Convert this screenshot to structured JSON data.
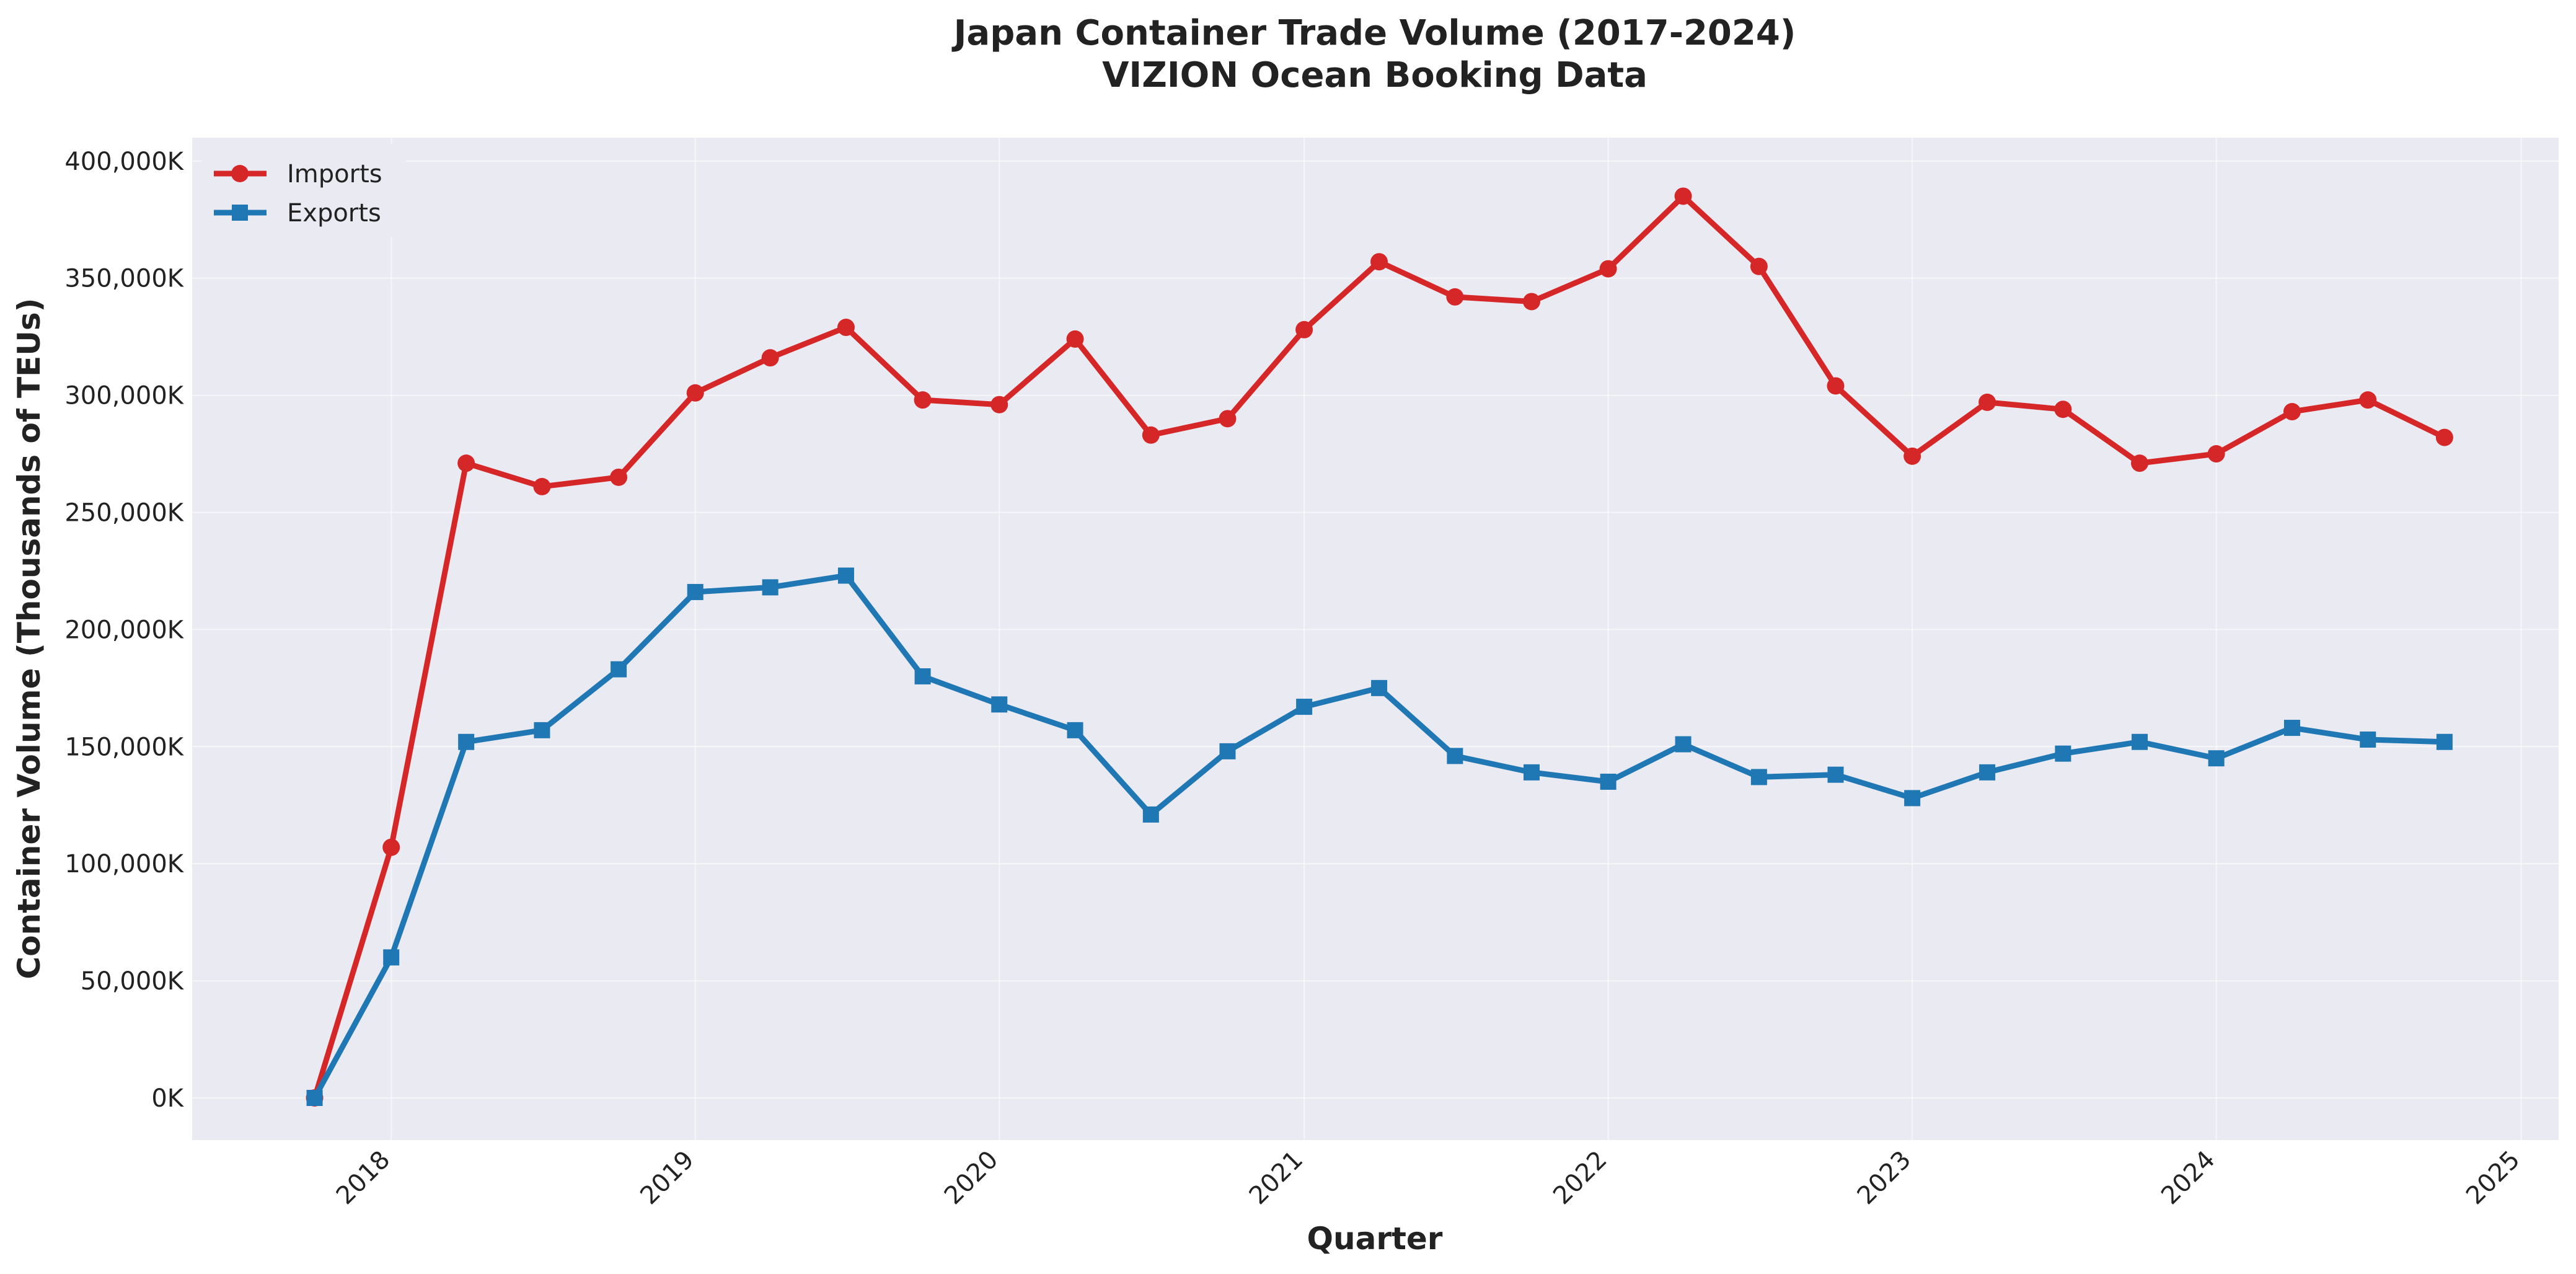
{
  "chart_data": {
    "type": "line",
    "title": "Japan Container Trade Volume (2017-2024)",
    "subtitle": "VIZION Ocean Booking Data",
    "xlabel": "Quarter",
    "ylabel": "Container Volume (Thousands of TEUs)",
    "xlim": [
      "2017-05-07",
      "2025-02-15"
    ],
    "ylim": [
      -18000,
      410000
    ],
    "x_ticks": [
      {
        "date": "2018-01-01",
        "label": "2018"
      },
      {
        "date": "2019-01-01",
        "label": "2019"
      },
      {
        "date": "2020-01-01",
        "label": "2020"
      },
      {
        "date": "2021-01-01",
        "label": "2021"
      },
      {
        "date": "2022-01-01",
        "label": "2022"
      },
      {
        "date": "2023-01-01",
        "label": "2023"
      },
      {
        "date": "2024-01-01",
        "label": "2024"
      },
      {
        "date": "2025-01-01",
        "label": "2025"
      }
    ],
    "y_ticks": [
      {
        "value": 0,
        "label": "0K"
      },
      {
        "value": 50000,
        "label": "50,000K"
      },
      {
        "value": 100000,
        "label": "100,000K"
      },
      {
        "value": 150000,
        "label": "150,000K"
      },
      {
        "value": 200000,
        "label": "200,000K"
      },
      {
        "value": 250000,
        "label": "250,000K"
      },
      {
        "value": 300000,
        "label": "300,000K"
      },
      {
        "value": 350000,
        "label": "350,000K"
      },
      {
        "value": 400000,
        "label": "400,000K"
      }
    ],
    "grid": true,
    "legend_position": "top-left",
    "x": [
      "2017-10-01",
      "2018-01-01",
      "2018-04-01",
      "2018-07-01",
      "2018-10-01",
      "2019-01-01",
      "2019-04-01",
      "2019-07-01",
      "2019-10-01",
      "2020-01-01",
      "2020-04-01",
      "2020-07-01",
      "2020-10-01",
      "2021-01-01",
      "2021-04-01",
      "2021-07-01",
      "2021-10-01",
      "2022-01-01",
      "2022-04-01",
      "2022-07-01",
      "2022-10-01",
      "2023-01-01",
      "2023-04-01",
      "2023-07-01",
      "2023-10-01",
      "2024-01-01",
      "2024-04-01",
      "2024-07-01",
      "2024-10-01"
    ],
    "series": [
      {
        "name": "Imports",
        "color": "#d62728",
        "marker": "circle",
        "values": [
          0,
          107000,
          271000,
          261000,
          265000,
          301000,
          316000,
          329000,
          298000,
          296000,
          324000,
          283000,
          290000,
          328000,
          357000,
          342000,
          340000,
          354000,
          385000,
          355000,
          304000,
          274000,
          297000,
          294000,
          271000,
          275000,
          293000,
          298000,
          282000
        ]
      },
      {
        "name": "Exports",
        "color": "#1f77b4",
        "marker": "square",
        "values": [
          0,
          60000,
          152000,
          157000,
          183000,
          216000,
          218000,
          223000,
          180000,
          168000,
          157000,
          121000,
          148000,
          167000,
          175000,
          146000,
          139000,
          135000,
          151000,
          137000,
          138000,
          128000,
          139000,
          147000,
          152000,
          145000,
          158000,
          153000,
          152000
        ]
      }
    ],
    "colors": {
      "plot_background": "#eaeaf2",
      "grid": "#ffffff",
      "text": "#222222"
    }
  }
}
